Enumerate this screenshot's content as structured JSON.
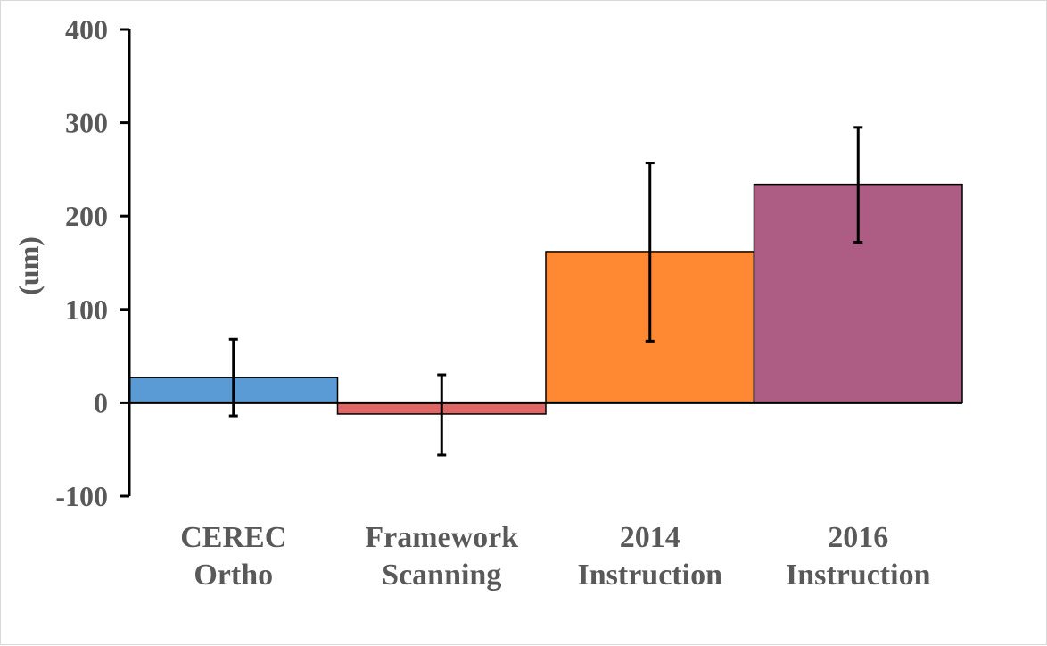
{
  "chart_data": {
    "type": "bar",
    "categories": [
      [
        "CEREC",
        "Ortho"
      ],
      [
        "Framework",
        "Scanning"
      ],
      [
        "2014",
        "Instruction"
      ],
      [
        "2016",
        "Instruction"
      ]
    ],
    "values": [
      27,
      -12,
      162,
      234
    ],
    "error": [
      [
        -14,
        68
      ],
      [
        -56,
        30
      ],
      [
        66,
        257
      ],
      [
        172,
        295
      ]
    ],
    "colors": [
      "#5b9bd5",
      "#e06666",
      "#ff8833",
      "#ad5c84"
    ],
    "ylabel": "(um)",
    "ylim": [
      -100,
      400
    ],
    "yticks": [
      400,
      300,
      200,
      100,
      0,
      -100
    ],
    "grid": false,
    "legend": "none"
  }
}
